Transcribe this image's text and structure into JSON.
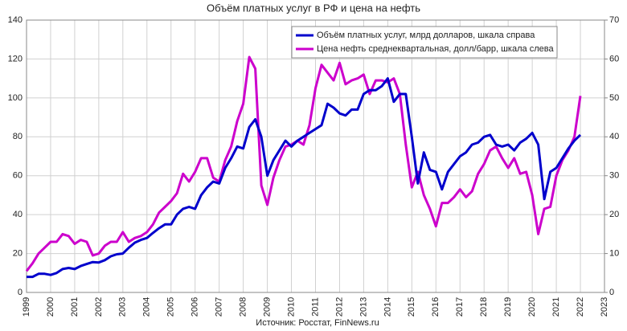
{
  "chart_data": {
    "type": "line",
    "title": "Объём платных услуг в РФ и цена на нефть",
    "source": "Источник: Росстат, FinNews.ru",
    "x": [
      1999,
      1999.25,
      1999.5,
      1999.75,
      2000,
      2000.25,
      2000.5,
      2000.75,
      2001,
      2001.25,
      2001.5,
      2001.75,
      2002,
      2002.25,
      2002.5,
      2002.75,
      2003,
      2003.25,
      2003.5,
      2003.75,
      2004,
      2004.25,
      2004.5,
      2004.75,
      2005,
      2005.25,
      2005.5,
      2005.75,
      2006,
      2006.25,
      2006.5,
      2006.75,
      2007,
      2007.25,
      2007.5,
      2007.75,
      2008,
      2008.25,
      2008.5,
      2008.75,
      2009,
      2009.25,
      2009.5,
      2009.75,
      2010,
      2010.25,
      2010.5,
      2010.75,
      2011,
      2011.25,
      2011.5,
      2011.75,
      2012,
      2012.25,
      2012.5,
      2012.75,
      2013,
      2013.25,
      2013.5,
      2013.75,
      2014,
      2014.25,
      2014.5,
      2014.75,
      2015,
      2015.25,
      2015.5,
      2015.75,
      2016,
      2016.25,
      2016.5,
      2016.75,
      2017,
      2017.25,
      2017.5,
      2017.75,
      2018,
      2018.25,
      2018.5,
      2018.75,
      2019,
      2019.25,
      2019.5,
      2019.75,
      2020,
      2020.25,
      2020.5,
      2020.75,
      2021,
      2021.25,
      2021.5,
      2021.75,
      2022
    ],
    "series": [
      {
        "name": "Объём платных услуг, млрд долларов, шкала справа",
        "color": "#0000cc",
        "axis": "y2",
        "values": [
          4,
          4,
          4.8,
          4.8,
          4.5,
          5,
          6,
          6.3,
          6,
          6.8,
          7.3,
          7.8,
          7.7,
          8.3,
          9.3,
          9.8,
          10,
          11.5,
          12.8,
          13.5,
          14,
          15.3,
          16.5,
          17.5,
          17.5,
          20,
          21.5,
          22,
          21.5,
          25,
          27,
          28.5,
          28,
          32,
          34.5,
          37.5,
          37,
          42.5,
          44.5,
          40,
          30,
          34,
          36.5,
          39,
          37.5,
          39,
          40,
          41,
          42,
          43,
          48.5,
          47.5,
          46,
          45.5,
          47,
          47,
          51,
          52,
          52,
          53,
          55,
          49,
          51,
          51,
          40,
          28,
          36,
          31.5,
          31,
          26.5,
          31,
          33,
          35,
          36,
          38,
          38.5,
          40,
          40.5,
          38,
          37.5,
          38,
          36.5,
          38.5,
          39.5,
          41,
          38,
          24,
          31,
          32,
          34.5,
          37,
          39,
          40.5
        ]
      },
      {
        "name": "Цена нефть среднеквартальная, долл/барр, шкала слева",
        "color": "#cc00cc",
        "values": [
          11,
          15,
          20,
          23,
          26,
          26,
          30,
          29,
          25,
          27,
          26,
          19,
          20,
          24,
          26,
          26,
          31,
          26,
          28,
          29,
          31,
          35,
          41,
          44,
          47,
          51,
          61,
          57,
          62,
          69,
          69,
          59,
          57,
          68,
          75,
          88,
          97,
          121,
          115,
          55,
          45,
          59,
          68,
          75,
          76,
          78,
          76,
          86,
          105,
          117,
          113,
          109,
          118,
          107,
          109,
          110,
          112,
          102,
          109,
          109,
          108,
          110,
          102,
          76,
          54,
          62,
          50,
          43,
          34,
          46,
          46,
          49,
          53,
          49,
          52,
          61,
          66,
          73,
          75,
          69,
          64,
          69,
          61,
          62,
          50,
          30,
          43,
          44,
          60,
          68,
          73,
          80,
          101
        ]
      }
    ],
    "xlim": [
      1999,
      2023
    ],
    "xticks": [
      1999,
      2000,
      2001,
      2002,
      2003,
      2004,
      2005,
      2006,
      2007,
      2008,
      2009,
      2010,
      2011,
      2012,
      2013,
      2014,
      2015,
      2016,
      2017,
      2018,
      2019,
      2020,
      2021,
      2022,
      2023
    ],
    "ylim": [
      0,
      140
    ],
    "yticks": [
      0,
      20,
      40,
      60,
      80,
      100,
      120,
      140
    ],
    "y2lim": [
      0,
      70
    ],
    "y2ticks": [
      0,
      10,
      20,
      30,
      40,
      50,
      60,
      70
    ],
    "grid": true
  }
}
